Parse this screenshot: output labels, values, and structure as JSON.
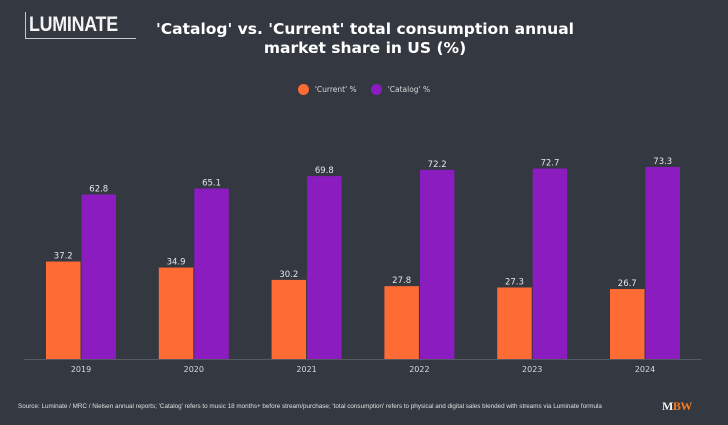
{
  "brand": {
    "logo_text": "LUMINATE",
    "publisher_m": "M",
    "publisher_bw": "BW"
  },
  "colors": {
    "background": "#333841",
    "current": "#ff6b35",
    "catalog": "#8b1cbf",
    "axis": "#555a63",
    "text": "#d9d9d9"
  },
  "chart_data": {
    "type": "bar",
    "title": "'Catalog' vs. 'Current' total consumption annual market share in US  (%)",
    "title_lines": [
      "'Catalog' vs. 'Current' total consumption annual",
      "market share in US  (%)"
    ],
    "xlabel": "",
    "ylabel": "",
    "categories": [
      "2019",
      "2020",
      "2021",
      "2022",
      "2023",
      "2024"
    ],
    "series": [
      {
        "name": "'Current' %",
        "color": "#ff6b35",
        "values": [
          37.2,
          34.9,
          30.2,
          27.8,
          27.3,
          26.7
        ]
      },
      {
        "name": "'Catalog' %",
        "color": "#8b1cbf",
        "values": [
          62.8,
          65.1,
          69.8,
          72.2,
          72.7,
          73.3
        ]
      }
    ],
    "ylim": [
      0,
      80
    ],
    "grid": false,
    "y_axis_visible": false,
    "data_labels": true,
    "legend_position": "top-center"
  },
  "footer": {
    "source": "Source: Luminate / MRC / Nielsen annual reports; 'Catalog' refers to music 18 months+ before stream/purchase; 'total consumption' refers to physical and digital sales blended with streams via Luminate formula"
  }
}
